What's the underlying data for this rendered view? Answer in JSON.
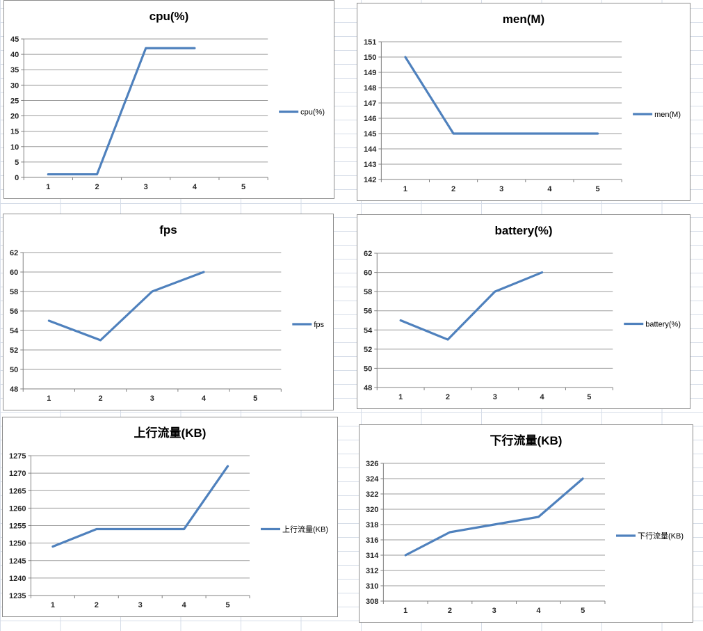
{
  "app": {
    "description_colors": {
      "series_line": "#4f81bd",
      "chart_grid": "#9b9b9b",
      "chart_axis": "#808080",
      "chart_frame_border": "#8c8c8c",
      "excel_sheet_gridline": "#d6dde8",
      "tick_label": "#262626"
    }
  },
  "chart_style": {
    "line_color": "#4f81bd",
    "grid_color": "#9b9b9b",
    "axis_color": "#808080",
    "frame_border": "#8c8c8c",
    "excel_grid_color": "#d6dde8",
    "label_color": "#262626"
  },
  "chart_data": [
    {
      "type": "line",
      "title": "cpu(%)",
      "legend": "cpu(%)",
      "legend_position": "right",
      "grid": true,
      "categories": [
        "1",
        "2",
        "3",
        "4",
        "5"
      ],
      "values": [
        1,
        1,
        42,
        42,
        null
      ],
      "ylim": [
        0,
        45
      ],
      "yticks": [
        0,
        5,
        10,
        15,
        20,
        25,
        30,
        35,
        40,
        45
      ],
      "xlabel": "",
      "ylabel": "",
      "line_color": "#4f81bd"
    },
    {
      "type": "line",
      "title": "men(M)",
      "legend": "men(M)",
      "legend_position": "right",
      "grid": true,
      "categories": [
        "1",
        "2",
        "3",
        "4",
        "5"
      ],
      "values": [
        150,
        145,
        145,
        145,
        145
      ],
      "ylim": [
        142,
        151
      ],
      "yticks": [
        142,
        143,
        144,
        145,
        146,
        147,
        148,
        149,
        150,
        151
      ],
      "xlabel": "",
      "ylabel": "",
      "line_color": "#4f81bd"
    },
    {
      "type": "line",
      "title": "fps",
      "legend": "fps",
      "legend_position": "right",
      "grid": true,
      "categories": [
        "1",
        "2",
        "3",
        "4",
        "5"
      ],
      "values": [
        55,
        53,
        58,
        60,
        null
      ],
      "ylim": [
        48,
        62
      ],
      "yticks": [
        48,
        50,
        52,
        54,
        56,
        58,
        60,
        62
      ],
      "xlabel": "",
      "ylabel": "",
      "line_color": "#4f81bd"
    },
    {
      "type": "line",
      "title": "battery(%)",
      "legend": "battery(%)",
      "legend_position": "right",
      "grid": true,
      "categories": [
        "1",
        "2",
        "3",
        "4",
        "5"
      ],
      "values": [
        55,
        53,
        58,
        60,
        null
      ],
      "ylim": [
        48,
        62
      ],
      "yticks": [
        48,
        50,
        52,
        54,
        56,
        58,
        60,
        62
      ],
      "xlabel": "",
      "ylabel": "",
      "line_color": "#4f81bd"
    },
    {
      "type": "line",
      "title": "上行流量(KB)",
      "legend": "上行流量(KB)",
      "legend_position": "right",
      "grid": true,
      "categories": [
        "1",
        "2",
        "3",
        "4",
        "5"
      ],
      "values": [
        1249,
        1254,
        1254,
        1254,
        1272
      ],
      "ylim": [
        1235,
        1275
      ],
      "yticks": [
        1235,
        1240,
        1245,
        1250,
        1255,
        1260,
        1265,
        1270,
        1275
      ],
      "xlabel": "",
      "ylabel": "",
      "line_color": "#4f81bd"
    },
    {
      "type": "line",
      "title": "下行流量(KB)",
      "legend": "下行流量(KB)",
      "legend_position": "right",
      "grid": true,
      "categories": [
        "1",
        "2",
        "3",
        "4",
        "5"
      ],
      "values": [
        314,
        317,
        318,
        319,
        324
      ],
      "ylim": [
        308,
        326
      ],
      "yticks": [
        308,
        310,
        312,
        314,
        316,
        318,
        320,
        322,
        324,
        326
      ],
      "xlabel": "",
      "ylabel": "",
      "line_color": "#4f81bd"
    }
  ]
}
